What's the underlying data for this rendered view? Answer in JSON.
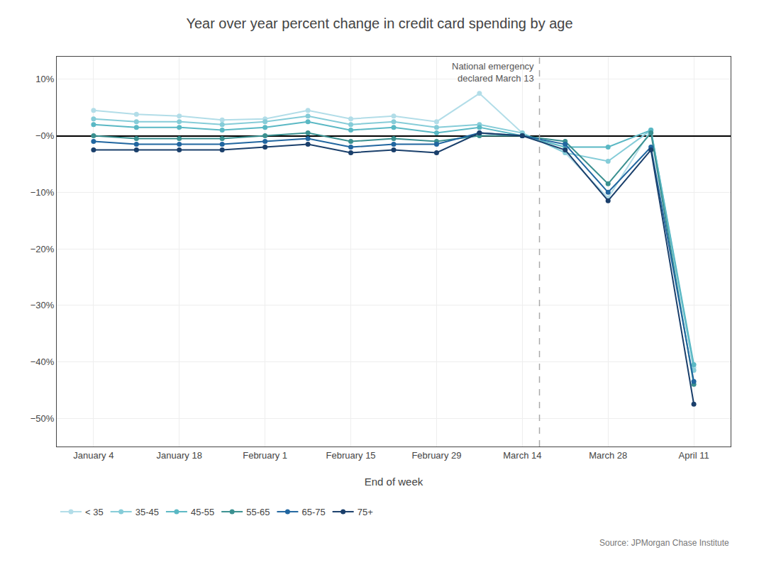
{
  "chart_data": {
    "type": "line",
    "title": "Year over year percent change in credit card spending by age",
    "xlabel": "End of week",
    "categories": [
      "January 4",
      null,
      "January 18",
      null,
      "February 1",
      null,
      "February 15",
      null,
      "February 29",
      null,
      "March 14",
      null,
      "March 28",
      null,
      "April 11"
    ],
    "series": [
      {
        "name": "< 35",
        "color": "#b2dde8",
        "values": [
          4.5,
          3.8,
          3.5,
          2.8,
          3.0,
          4.5,
          3.0,
          3.5,
          2.5,
          7.5,
          0.5,
          -3.0,
          -11.0,
          1.0,
          -41.0
        ]
      },
      {
        "name": "35-45",
        "color": "#85ccd8",
        "values": [
          3.0,
          2.5,
          2.5,
          2.0,
          2.5,
          3.5,
          2.0,
          2.5,
          1.5,
          2.0,
          0.5,
          -3.0,
          -4.5,
          1.0,
          -41.5
        ]
      },
      {
        "name": "45-55",
        "color": "#5ab8c4",
        "values": [
          2.0,
          1.5,
          1.5,
          1.0,
          1.5,
          2.5,
          1.0,
          1.5,
          0.5,
          1.5,
          0.0,
          -2.0,
          -2.0,
          1.0,
          -40.5
        ]
      },
      {
        "name": "55-65",
        "color": "#3a9090",
        "values": [
          0.0,
          -0.5,
          -0.5,
          -0.5,
          0.0,
          0.5,
          -1.0,
          -0.5,
          -1.0,
          0.0,
          0.0,
          -1.0,
          -8.5,
          0.5,
          -44.0
        ]
      },
      {
        "name": "65-75",
        "color": "#2166a0",
        "values": [
          -1.0,
          -1.5,
          -1.5,
          -1.5,
          -1.0,
          -0.5,
          -2.0,
          -1.5,
          -1.5,
          0.5,
          0.0,
          -1.5,
          -10.0,
          -2.0,
          -43.5
        ]
      },
      {
        "name": "75+",
        "color": "#1a3f6b",
        "values": [
          -2.5,
          -2.5,
          -2.5,
          -2.5,
          -2.0,
          -1.5,
          -3.0,
          -2.5,
          -3.0,
          0.5,
          0.0,
          -2.5,
          -11.5,
          -2.5,
          -47.5
        ]
      }
    ],
    "ylim": [
      -55,
      14
    ],
    "yticks": [
      {
        "value": 10,
        "label": "10%"
      },
      {
        "value": 0,
        "label": "−0%"
      },
      {
        "value": -10,
        "label": "−10%"
      },
      {
        "value": -20,
        "label": "−20%"
      },
      {
        "value": -30,
        "label": "−30%"
      },
      {
        "value": -40,
        "label": "−40%"
      },
      {
        "value": -50,
        "label": "−50%"
      }
    ],
    "annotations": [
      {
        "text": "National emergency\ndeclared March 13",
        "x": 10.4
      },
      {
        "text": "Source: JPMorgan Chase Institute"
      }
    ],
    "marker": "circle",
    "grid": true,
    "legend": "bottom"
  }
}
